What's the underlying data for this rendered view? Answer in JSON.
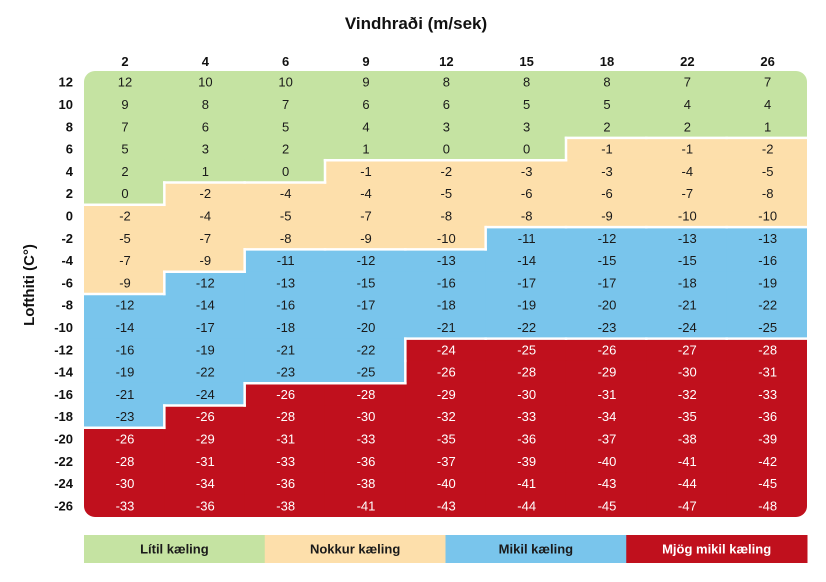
{
  "chart_data": {
    "type": "heatmap",
    "xlabel": "Vindhraði (m/sek)",
    "ylabel": "Lofthiti (C°)",
    "x": [
      2,
      4,
      6,
      9,
      12,
      15,
      18,
      22,
      26
    ],
    "y": [
      12,
      10,
      8,
      6,
      4,
      2,
      0,
      -2,
      -4,
      -6,
      -8,
      -10,
      -12,
      -14,
      -16,
      -18,
      -20,
      -22,
      -24,
      -26
    ],
    "values": [
      [
        12,
        10,
        10,
        9,
        8,
        8,
        8,
        7,
        7
      ],
      [
        9,
        8,
        7,
        6,
        6,
        5,
        5,
        4,
        4
      ],
      [
        7,
        6,
        5,
        4,
        3,
        3,
        2,
        2,
        1
      ],
      [
        5,
        3,
        2,
        1,
        0,
        0,
        -1,
        -1,
        -2
      ],
      [
        2,
        1,
        0,
        -1,
        -2,
        -3,
        -3,
        -4,
        -5
      ],
      [
        0,
        -2,
        -4,
        -4,
        -5,
        -6,
        -6,
        -7,
        -8
      ],
      [
        -2,
        -4,
        -5,
        -7,
        -8,
        -8,
        -9,
        -10,
        -10
      ],
      [
        -5,
        -7,
        -8,
        -9,
        -10,
        -11,
        -12,
        -13,
        -13
      ],
      [
        -7,
        -9,
        -11,
        -12,
        -13,
        -14,
        -15,
        -15,
        -16
      ],
      [
        -9,
        -12,
        -13,
        -15,
        -16,
        -17,
        -17,
        -18,
        -19
      ],
      [
        -12,
        -14,
        -16,
        -17,
        -18,
        -19,
        -20,
        -21,
        -22
      ],
      [
        -14,
        -17,
        -18,
        -20,
        -21,
        -22,
        -23,
        -24,
        -25
      ],
      [
        -16,
        -19,
        -21,
        -22,
        -24,
        -25,
        -26,
        -27,
        -28
      ],
      [
        -19,
        -22,
        -23,
        -25,
        -26,
        -28,
        -29,
        -30,
        -31
      ],
      [
        -21,
        -24,
        -26,
        -28,
        -29,
        -30,
        -31,
        -32,
        -33
      ],
      [
        -23,
        -26,
        -28,
        -30,
        -32,
        -33,
        -34,
        -35,
        -36
      ],
      [
        -26,
        -29,
        -31,
        -33,
        -35,
        -36,
        -37,
        -38,
        -39
      ],
      [
        -28,
        -31,
        -33,
        -36,
        -37,
        -39,
        -40,
        -41,
        -42
      ],
      [
        -30,
        -34,
        -36,
        -38,
        -40,
        -41,
        -43,
        -44,
        -45
      ],
      [
        -33,
        -36,
        -38,
        -41,
        -43,
        -44,
        -45,
        -47,
        -48
      ]
    ],
    "categories": [
      {
        "name": "Lítil kæling",
        "color": "#c5e3a2"
      },
      {
        "name": "Nokkur kæling",
        "color": "#fddfab"
      },
      {
        "name": "Mikil kæling",
        "color": "#79c5ec"
      },
      {
        "name": "Mjög mikil kæling",
        "color": "#c0101d"
      }
    ],
    "category_grid": [
      [
        0,
        0,
        0,
        0,
        0,
        0,
        0,
        0,
        0
      ],
      [
        0,
        0,
        0,
        0,
        0,
        0,
        0,
        0,
        0
      ],
      [
        0,
        0,
        0,
        0,
        0,
        0,
        0,
        0,
        0
      ],
      [
        0,
        0,
        0,
        0,
        0,
        0,
        1,
        1,
        1
      ],
      [
        0,
        0,
        0,
        1,
        1,
        1,
        1,
        1,
        1
      ],
      [
        0,
        1,
        1,
        1,
        1,
        1,
        1,
        1,
        1
      ],
      [
        1,
        1,
        1,
        1,
        1,
        1,
        1,
        1,
        1
      ],
      [
        1,
        1,
        1,
        1,
        1,
        2,
        2,
        2,
        2
      ],
      [
        1,
        1,
        2,
        2,
        2,
        2,
        2,
        2,
        2
      ],
      [
        1,
        2,
        2,
        2,
        2,
        2,
        2,
        2,
        2
      ],
      [
        2,
        2,
        2,
        2,
        2,
        2,
        2,
        2,
        2
      ],
      [
        2,
        2,
        2,
        2,
        2,
        2,
        2,
        2,
        2
      ],
      [
        2,
        2,
        2,
        2,
        3,
        3,
        3,
        3,
        3
      ],
      [
        2,
        2,
        2,
        2,
        3,
        3,
        3,
        3,
        3
      ],
      [
        2,
        2,
        3,
        3,
        3,
        3,
        3,
        3,
        3
      ],
      [
        2,
        3,
        3,
        3,
        3,
        3,
        3,
        3,
        3
      ],
      [
        3,
        3,
        3,
        3,
        3,
        3,
        3,
        3,
        3
      ],
      [
        3,
        3,
        3,
        3,
        3,
        3,
        3,
        3,
        3
      ],
      [
        3,
        3,
        3,
        3,
        3,
        3,
        3,
        3,
        3
      ],
      [
        3,
        3,
        3,
        3,
        3,
        3,
        3,
        3,
        3
      ]
    ],
    "legend_position": "bottom",
    "grid": false
  }
}
